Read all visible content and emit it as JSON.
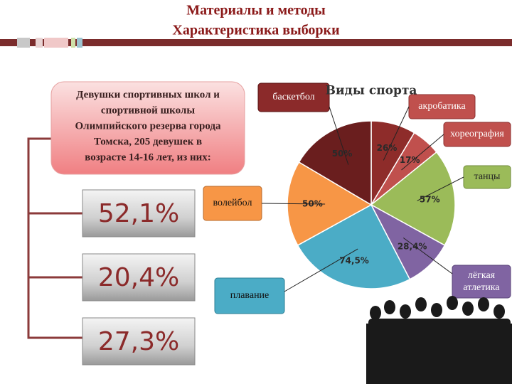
{
  "header": {
    "title": [
      "Материалы и методы",
      "Характеристика выборки"
    ]
  },
  "sample": {
    "lines": [
      "Девушки спортивных школ и",
      "спортивной школы",
      "Олимпийского резерва города",
      "Томска, 205 девушек в",
      "возрасте 14-16 лет, из них:"
    ],
    "shares": [
      "52,1%",
      "20,4%",
      "27,3%"
    ]
  },
  "chart_data": {
    "type": "pie",
    "title": "Виды спорта",
    "categories": [
      "акробатика",
      "хореография",
      "танцы",
      "лёгкая атлетика",
      "плавание",
      "волейбол",
      "баскетбол"
    ],
    "values": [
      26,
      17,
      57,
      28.4,
      74.5,
      50,
      50
    ],
    "value_labels": [
      "26%",
      "17%",
      "57%",
      "28,4%",
      "74,5%",
      "50%",
      "50%"
    ],
    "colors": [
      "#8e2c2a",
      "#c0504d",
      "#9bbb59",
      "#8064a2",
      "#4bacc6",
      "#f79646",
      "#6a1e1e"
    ]
  }
}
